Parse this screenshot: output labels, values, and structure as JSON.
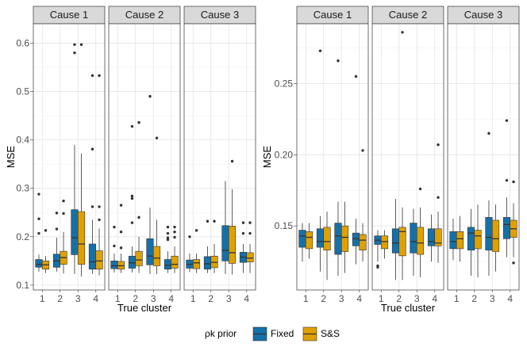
{
  "legend": {
    "title": "ρk prior",
    "items": [
      {
        "label": "Fixed",
        "color": "#1670A8"
      },
      {
        "label": "S&S",
        "color": "#E0A000"
      }
    ]
  },
  "chart_data": [
    {
      "type": "boxplot",
      "xlabel": "True cluster",
      "ylabel": "MSE",
      "ylim": [
        0.09,
        0.64
      ],
      "yticks": [
        0.1,
        0.2,
        0.3,
        0.4,
        0.5,
        0.6
      ],
      "ytick_labels": [
        "0.1",
        "0.2",
        "0.3",
        "0.4",
        "0.5",
        "0.6"
      ],
      "categories": [
        "1",
        "2",
        "3",
        "4"
      ],
      "facets": [
        {
          "title": "Cause 1",
          "series": [
            {
              "name": "Fixed",
              "boxes": [
                {
                  "whislo": 0.128,
                  "q1": 0.137,
                  "med": 0.143,
                  "q3": 0.153,
                  "whishi": 0.163,
                  "fliers": [
                    0.288,
                    0.237,
                    0.207
                  ]
                },
                {
                  "whislo": 0.128,
                  "q1": 0.137,
                  "med": 0.15,
                  "q3": 0.164,
                  "whishi": 0.198,
                  "fliers": [
                    0.249,
                    0.216
                  ]
                },
                {
                  "whislo": 0.123,
                  "q1": 0.163,
                  "med": 0.198,
                  "q3": 0.256,
                  "whishi": 0.39,
                  "fliers": [
                    0.597,
                    0.58
                  ]
                },
                {
                  "whislo": 0.123,
                  "q1": 0.133,
                  "med": 0.148,
                  "q3": 0.185,
                  "whishi": 0.235,
                  "fliers": [
                    0.533,
                    0.381,
                    0.262
                  ]
                }
              ]
            },
            {
              "name": "S&S",
              "boxes": [
                {
                  "whislo": 0.125,
                  "q1": 0.133,
                  "med": 0.142,
                  "q3": 0.15,
                  "whishi": 0.16,
                  "fliers": [
                    0.213
                  ]
                },
                {
                  "whislo": 0.124,
                  "q1": 0.143,
                  "med": 0.157,
                  "q3": 0.17,
                  "whishi": 0.21,
                  "fliers": [
                    0.274,
                    0.248
                  ]
                },
                {
                  "whislo": 0.118,
                  "q1": 0.143,
                  "med": 0.185,
                  "q3": 0.252,
                  "whishi": 0.372,
                  "fliers": [
                    0.597
                  ]
                },
                {
                  "whislo": 0.12,
                  "q1": 0.133,
                  "med": 0.15,
                  "q3": 0.171,
                  "whishi": 0.217,
                  "fliers": [
                    0.533,
                    0.262,
                    0.235
                  ]
                }
              ]
            }
          ]
        },
        {
          "title": "Cause 2",
          "series": [
            {
              "name": "Fixed",
              "boxes": [
                {
                  "whislo": 0.126,
                  "q1": 0.134,
                  "med": 0.14,
                  "q3": 0.15,
                  "whishi": 0.165,
                  "fliers": [
                    0.22,
                    0.181
                  ]
                },
                {
                  "whislo": 0.126,
                  "q1": 0.135,
                  "med": 0.146,
                  "q3": 0.16,
                  "whishi": 0.18,
                  "fliers": [
                    0.428,
                    0.284,
                    0.279,
                    0.229
                  ]
                },
                {
                  "whislo": 0.123,
                  "q1": 0.142,
                  "med": 0.16,
                  "q3": 0.196,
                  "whishi": 0.26,
                  "fliers": [
                    0.49
                  ]
                },
                {
                  "whislo": 0.125,
                  "q1": 0.133,
                  "med": 0.141,
                  "q3": 0.153,
                  "whishi": 0.17,
                  "fliers": [
                    0.22,
                    0.207,
                    0.198,
                    0.194
                  ]
                }
              ]
            },
            {
              "name": "S&S",
              "boxes": [
                {
                  "whislo": 0.125,
                  "q1": 0.133,
                  "med": 0.14,
                  "q3": 0.149,
                  "whishi": 0.165,
                  "fliers": [
                    0.265,
                    0.21,
                    0.177
                  ]
                },
                {
                  "whislo": 0.125,
                  "q1": 0.14,
                  "med": 0.152,
                  "q3": 0.17,
                  "whishi": 0.2,
                  "fliers": [
                    0.436,
                    0.24
                  ]
                },
                {
                  "whislo": 0.123,
                  "q1": 0.14,
                  "med": 0.156,
                  "q3": 0.18,
                  "whishi": 0.235,
                  "fliers": [
                    0.404
                  ]
                },
                {
                  "whislo": 0.125,
                  "q1": 0.135,
                  "med": 0.143,
                  "q3": 0.16,
                  "whishi": 0.18,
                  "fliers": [
                    0.22,
                    0.21,
                    0.199
                  ]
                }
              ]
            }
          ]
        },
        {
          "title": "Cause 3",
          "series": [
            {
              "name": "Fixed",
              "boxes": [
                {
                  "whislo": 0.127,
                  "q1": 0.135,
                  "med": 0.143,
                  "q3": 0.152,
                  "whishi": 0.165,
                  "fliers": [
                    0.2
                  ]
                },
                {
                  "whislo": 0.125,
                  "q1": 0.133,
                  "med": 0.144,
                  "q3": 0.159,
                  "whishi": 0.18,
                  "fliers": [
                    0.232
                  ]
                },
                {
                  "whislo": 0.123,
                  "q1": 0.15,
                  "med": 0.172,
                  "q3": 0.223,
                  "whishi": 0.315,
                  "fliers": []
                },
                {
                  "whislo": 0.125,
                  "q1": 0.147,
                  "med": 0.158,
                  "q3": 0.168,
                  "whishi": 0.185,
                  "fliers": [
                    0.229,
                    0.207
                  ]
                }
              ]
            },
            {
              "name": "S&S",
              "boxes": [
                {
                  "whislo": 0.125,
                  "q1": 0.134,
                  "med": 0.146,
                  "q3": 0.153,
                  "whishi": 0.165,
                  "fliers": [
                    0.213
                  ]
                },
                {
                  "whislo": 0.125,
                  "q1": 0.136,
                  "med": 0.147,
                  "q3": 0.16,
                  "whishi": 0.185,
                  "fliers": [
                    0.232
                  ]
                },
                {
                  "whislo": 0.122,
                  "q1": 0.145,
                  "med": 0.167,
                  "q3": 0.222,
                  "whishi": 0.298,
                  "fliers": [
                    0.356
                  ]
                },
                {
                  "whislo": 0.125,
                  "q1": 0.148,
                  "med": 0.156,
                  "q3": 0.167,
                  "whishi": 0.185,
                  "fliers": [
                    0.229,
                    0.207
                  ]
                }
              ]
            }
          ]
        }
      ]
    },
    {
      "type": "boxplot",
      "xlabel": "True cluster",
      "ylabel": "MSE",
      "ylim": [
        0.105,
        0.292
      ],
      "yticks": [
        0.15,
        0.2,
        0.25
      ],
      "ytick_labels": [
        "0.15",
        "0.20",
        "0.25"
      ],
      "categories": [
        "1",
        "2",
        "3",
        "4"
      ],
      "facets": [
        {
          "title": "Cause 1",
          "series": [
            {
              "name": "Fixed",
              "boxes": [
                {
                  "whislo": 0.125,
                  "q1": 0.135,
                  "med": 0.143,
                  "q3": 0.147,
                  "whishi": 0.152,
                  "fliers": []
                },
                {
                  "whislo": 0.118,
                  "q1": 0.135,
                  "med": 0.139,
                  "q3": 0.148,
                  "whishi": 0.157,
                  "fliers": [
                    0.273
                  ]
                },
                {
                  "whislo": 0.115,
                  "q1": 0.13,
                  "med": 0.143,
                  "q3": 0.152,
                  "whishi": 0.167,
                  "fliers": [
                    0.266
                  ]
                },
                {
                  "whislo": 0.123,
                  "q1": 0.136,
                  "med": 0.141,
                  "q3": 0.145,
                  "whishi": 0.155,
                  "fliers": [
                    0.255
                  ]
                }
              ]
            },
            {
              "name": "S&S",
              "boxes": [
                {
                  "whislo": 0.127,
                  "q1": 0.134,
                  "med": 0.142,
                  "q3": 0.146,
                  "whishi": 0.152,
                  "fliers": []
                },
                {
                  "whislo": 0.112,
                  "q1": 0.133,
                  "med": 0.139,
                  "q3": 0.149,
                  "whishi": 0.16,
                  "fliers": []
                },
                {
                  "whislo": 0.117,
                  "q1": 0.132,
                  "med": 0.142,
                  "q3": 0.15,
                  "whishi": 0.167,
                  "fliers": []
                },
                {
                  "whislo": 0.125,
                  "q1": 0.133,
                  "med": 0.14,
                  "q3": 0.144,
                  "whishi": 0.152,
                  "fliers": [
                    0.203
                  ]
                }
              ]
            }
          ]
        },
        {
          "title": "Cause 2",
          "series": [
            {
              "name": "Fixed",
              "boxes": [
                {
                  "whislo": 0.125,
                  "q1": 0.137,
                  "med": 0.14,
                  "q3": 0.143,
                  "whishi": 0.147,
                  "fliers": [
                    0.122,
                    0.121
                  ]
                },
                {
                  "whislo": 0.112,
                  "q1": 0.131,
                  "med": 0.138,
                  "q3": 0.148,
                  "whishi": 0.169,
                  "fliers": []
                },
                {
                  "whislo": 0.115,
                  "q1": 0.131,
                  "med": 0.139,
                  "q3": 0.152,
                  "whishi": 0.162,
                  "fliers": []
                },
                {
                  "whislo": 0.125,
                  "q1": 0.136,
                  "med": 0.139,
                  "q3": 0.148,
                  "whishi": 0.158,
                  "fliers": []
                }
              ]
            },
            {
              "name": "S&S",
              "boxes": [
                {
                  "whislo": 0.127,
                  "q1": 0.134,
                  "med": 0.139,
                  "q3": 0.143,
                  "whishi": 0.147,
                  "fliers": []
                },
                {
                  "whislo": 0.112,
                  "q1": 0.129,
                  "med": 0.146,
                  "q3": 0.149,
                  "whishi": 0.163,
                  "fliers": [
                    0.286
                  ]
                },
                {
                  "whislo": 0.114,
                  "q1": 0.13,
                  "med": 0.138,
                  "q3": 0.149,
                  "whishi": 0.163,
                  "fliers": [
                    0.176
                  ]
                },
                {
                  "whislo": 0.124,
                  "q1": 0.136,
                  "med": 0.138,
                  "q3": 0.148,
                  "whishi": 0.16,
                  "fliers": [
                    0.207,
                    0.17
                  ]
                }
              ]
            }
          ]
        },
        {
          "title": "Cause 3",
          "series": [
            {
              "name": "Fixed",
              "boxes": [
                {
                  "whislo": 0.126,
                  "q1": 0.134,
                  "med": 0.139,
                  "q3": 0.146,
                  "whishi": 0.155,
                  "fliers": []
                },
                {
                  "whislo": 0.115,
                  "q1": 0.133,
                  "med": 0.145,
                  "q3": 0.149,
                  "whishi": 0.162,
                  "fliers": []
                },
                {
                  "whislo": 0.115,
                  "q1": 0.133,
                  "med": 0.142,
                  "q3": 0.156,
                  "whishi": 0.168,
                  "fliers": [
                    0.215
                  ]
                },
                {
                  "whislo": 0.128,
                  "q1": 0.141,
                  "med": 0.151,
                  "q3": 0.156,
                  "whishi": 0.17,
                  "fliers": [
                    0.224,
                    0.182
                  ]
                }
              ]
            },
            {
              "name": "S&S",
              "boxes": [
                {
                  "whislo": 0.125,
                  "q1": 0.134,
                  "med": 0.141,
                  "q3": 0.146,
                  "whishi": 0.157,
                  "fliers": []
                },
                {
                  "whislo": 0.114,
                  "q1": 0.134,
                  "med": 0.143,
                  "q3": 0.147,
                  "whishi": 0.165,
                  "fliers": []
                },
                {
                  "whislo": 0.118,
                  "q1": 0.132,
                  "med": 0.141,
                  "q3": 0.154,
                  "whishi": 0.165,
                  "fliers": []
                },
                {
                  "whislo": 0.128,
                  "q1": 0.142,
                  "med": 0.148,
                  "q3": 0.154,
                  "whishi": 0.166,
                  "fliers": [
                    0.181,
                    0.124
                  ]
                }
              ]
            }
          ]
        }
      ]
    }
  ]
}
